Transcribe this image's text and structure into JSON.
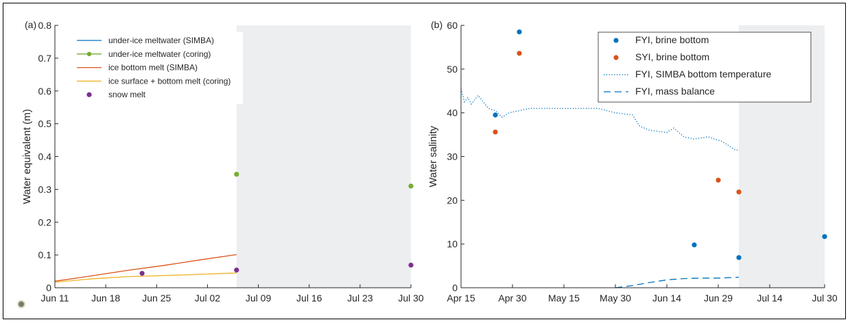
{
  "chart_data": [
    {
      "id": "a",
      "type": "line",
      "panel_label": "(a)",
      "ylabel": "Water equivalent (m)",
      "xlabel": "",
      "x_ticks": [
        "Jun 11",
        "Jun 18",
        "Jun 25",
        "Jul 02",
        "Jul 09",
        "Jul 16",
        "Jul 23",
        "Jul 30"
      ],
      "x_tick_days": [
        0,
        7,
        14,
        21,
        28,
        35,
        42,
        49
      ],
      "x_range": [
        0,
        49
      ],
      "ylim": [
        0,
        0.8
      ],
      "y_ticks": [
        "0",
        "0.1",
        "0.2",
        "0.3",
        "0.4",
        "0.5",
        "0.6",
        "0.7",
        "0.8"
      ],
      "shaded_x_range": [
        25,
        49
      ],
      "shade_color": "#eceef0",
      "grid": false,
      "legend_position": "top-left",
      "series": [
        {
          "name": "under-ice meltwater (SIMBA)",
          "style": "line",
          "color": "#0072bd",
          "x": [],
          "y": []
        },
        {
          "name": "under-ice meltwater (coring)",
          "style": "line-marker",
          "color": "#77ac30",
          "x": [
            25,
            49
          ],
          "y": [
            0.346,
            0.31
          ],
          "draw_line": false
        },
        {
          "name": "ice bottom melt (SIMBA)",
          "style": "line",
          "color": "#d95319",
          "x": [
            0,
            5,
            10,
            15,
            20,
            25
          ],
          "y": [
            0.02,
            0.036,
            0.053,
            0.068,
            0.085,
            0.101
          ]
        },
        {
          "name": "ice surface + bottom melt (coring)",
          "style": "line",
          "color": "#edb120",
          "x": [
            0,
            5,
            10,
            15,
            20,
            25
          ],
          "y": [
            0.017,
            0.027,
            0.034,
            0.037,
            0.041,
            0.045
          ]
        },
        {
          "name": "snow melt",
          "style": "marker",
          "color": "#7e2f8e",
          "x": [
            12,
            25,
            49
          ],
          "y": [
            0.044,
            0.054,
            0.069
          ]
        }
      ]
    },
    {
      "id": "b",
      "type": "line",
      "panel_label": "(b)",
      "ylabel": "Water salinity",
      "xlabel": "",
      "x_ticks": [
        "Apr 15",
        "Apr 30",
        "May 15",
        "May 30",
        "Jun 14",
        "Jun 29",
        "Jul 14",
        "Jul 30"
      ],
      "x_tick_days": [
        0,
        15,
        30,
        45,
        60,
        75,
        90,
        106
      ],
      "x_range": [
        0,
        106
      ],
      "ylim": [
        0,
        60
      ],
      "y_ticks": [
        "0",
        "10",
        "20",
        "30",
        "40",
        "50",
        "60"
      ],
      "shaded_x_range": [
        81,
        106
      ],
      "shade_color": "#eceef0",
      "grid": false,
      "legend_position": "top-right",
      "series": [
        {
          "name": "FYI, brine bottom",
          "style": "marker",
          "color": "#0072bd",
          "x": [
            10,
            17,
            68,
            81,
            106
          ],
          "y": [
            39.5,
            58.5,
            9.8,
            6.9,
            11.7
          ]
        },
        {
          "name": "SYI, brine bottom",
          "style": "marker",
          "color": "#d95319",
          "x": [
            10,
            17,
            75,
            81
          ],
          "y": [
            35.6,
            53.6,
            24.6,
            21.9
          ]
        },
        {
          "name": "FYI, SIMBA bottom temperature",
          "style": "dotted",
          "color": "#0072bd",
          "x": [
            0,
            1,
            2,
            3,
            5,
            8,
            10,
            12,
            14,
            17,
            20,
            25,
            30,
            40,
            45,
            50,
            52,
            55,
            60,
            62,
            65,
            68,
            72,
            76,
            78,
            80,
            81
          ],
          "y": [
            45.5,
            42.5,
            43.5,
            42,
            44,
            41,
            40.5,
            39,
            40,
            40.5,
            41,
            41,
            41,
            41,
            40,
            39.5,
            37,
            36,
            35.5,
            36.5,
            34.5,
            34,
            34.5,
            33.5,
            32.5,
            31.5,
            31.5
          ]
        },
        {
          "name": "FYI, mass balance",
          "style": "dashed",
          "color": "#0072bd",
          "x": [
            45,
            50,
            55,
            60,
            65,
            70,
            75,
            81
          ],
          "y": [
            0,
            0.5,
            1.2,
            1.8,
            2.1,
            2.2,
            2.2,
            2.4
          ]
        }
      ]
    }
  ]
}
